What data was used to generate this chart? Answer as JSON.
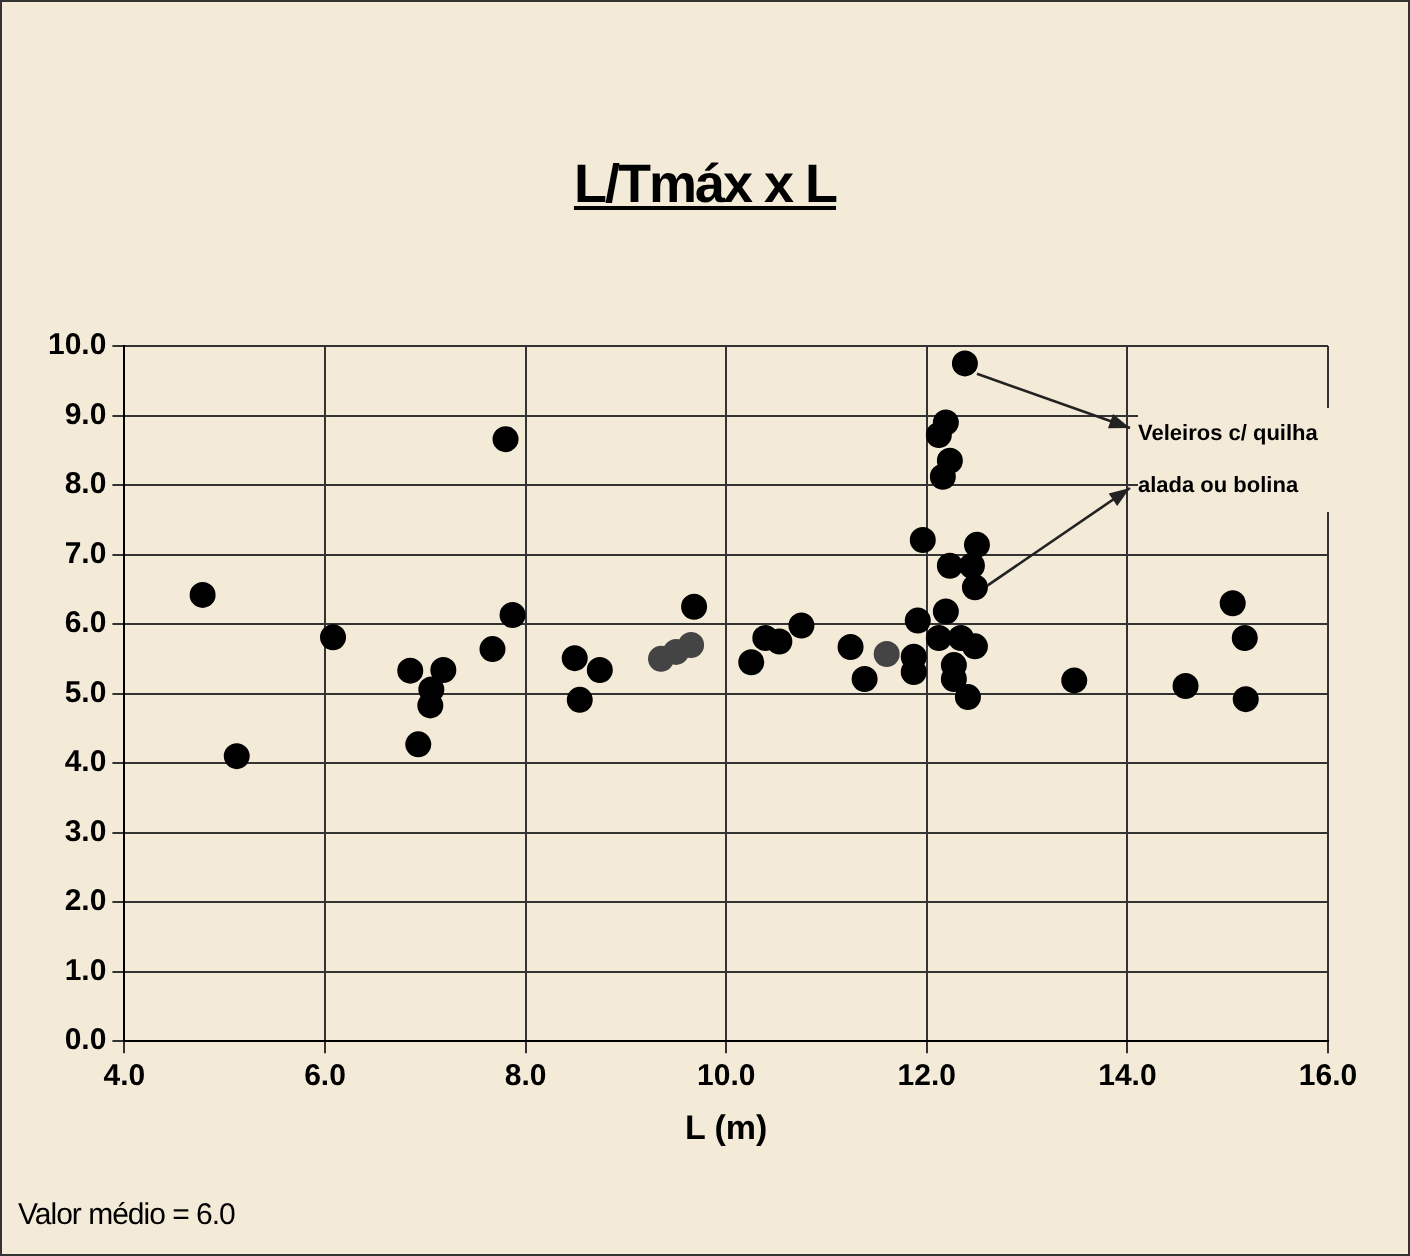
{
  "chart_data": {
    "type": "scatter",
    "title": "L/Tmáx x L",
    "xlabel": "L (m)",
    "annotations": [
      "Veleiros c/ quilha alada ou bolina",
      "Valor médio = 6.0"
    ],
    "xlim": [
      4,
      16
    ],
    "ylim": [
      0,
      10
    ],
    "xticks": [
      {
        "value": 4,
        "label": "4.0"
      },
      {
        "value": 6,
        "label": "6.0"
      },
      {
        "value": 8,
        "label": "8.0"
      },
      {
        "value": 10,
        "label": "10.0"
      },
      {
        "value": 12,
        "label": "12.0"
      },
      {
        "value": 14,
        "label": "14.0"
      },
      {
        "value": 16,
        "label": "16.0"
      }
    ],
    "yticks": [
      {
        "value": 0,
        "label": "0.0"
      },
      {
        "value": 1,
        "label": "1.0"
      },
      {
        "value": 2,
        "label": "2.0"
      },
      {
        "value": 3,
        "label": "3.0"
      },
      {
        "value": 4,
        "label": "4.0"
      },
      {
        "value": 5,
        "label": "5.0"
      },
      {
        "value": 6,
        "label": "6.0"
      },
      {
        "value": 7,
        "label": "7.0"
      },
      {
        "value": 8,
        "label": "8.0"
      },
      {
        "value": 9,
        "label": "9.0"
      },
      {
        "value": 10,
        "label": "10.0"
      }
    ],
    "grid": true,
    "legend": false,
    "marker": "circle",
    "series": [
      {
        "color": "#000000",
        "x": [
          4.78,
          5.12,
          6.08,
          6.85,
          6.93,
          7.18,
          7.06,
          7.05,
          7.67,
          7.87,
          7.8,
          8.49,
          8.74,
          8.54,
          9.68,
          10.25,
          10.39,
          10.53,
          10.75,
          11.24,
          11.38,
          11.87,
          11.87,
          11.91,
          12.12,
          12.19,
          12.27,
          12.27,
          12.34,
          12.41,
          12.48,
          11.96,
          12.5,
          12.23,
          12.45,
          12.48,
          12.19,
          12.12,
          12.23,
          12.16,
          12.38,
          13.47,
          14.58,
          15.05,
          15.17,
          15.18
        ],
        "values": [
          6.42,
          4.1,
          5.81,
          5.33,
          4.27,
          5.34,
          5.06,
          4.83,
          5.64,
          6.13,
          8.66,
          5.51,
          5.34,
          4.91,
          6.25,
          5.45,
          5.8,
          5.75,
          5.98,
          5.67,
          5.21,
          5.53,
          5.31,
          6.05,
          5.8,
          6.18,
          5.41,
          5.21,
          5.8,
          4.95,
          5.68,
          7.21,
          7.14,
          6.84,
          6.84,
          6.53,
          8.9,
          8.72,
          8.35,
          8.12,
          9.75,
          5.19,
          5.11,
          6.3,
          5.8,
          4.92
        ]
      },
      {
        "color": "#444444",
        "x": [
          9.35,
          9.5,
          9.65,
          11.6
        ],
        "values": [
          5.5,
          5.6,
          5.7,
          5.57
        ]
      }
    ]
  }
}
